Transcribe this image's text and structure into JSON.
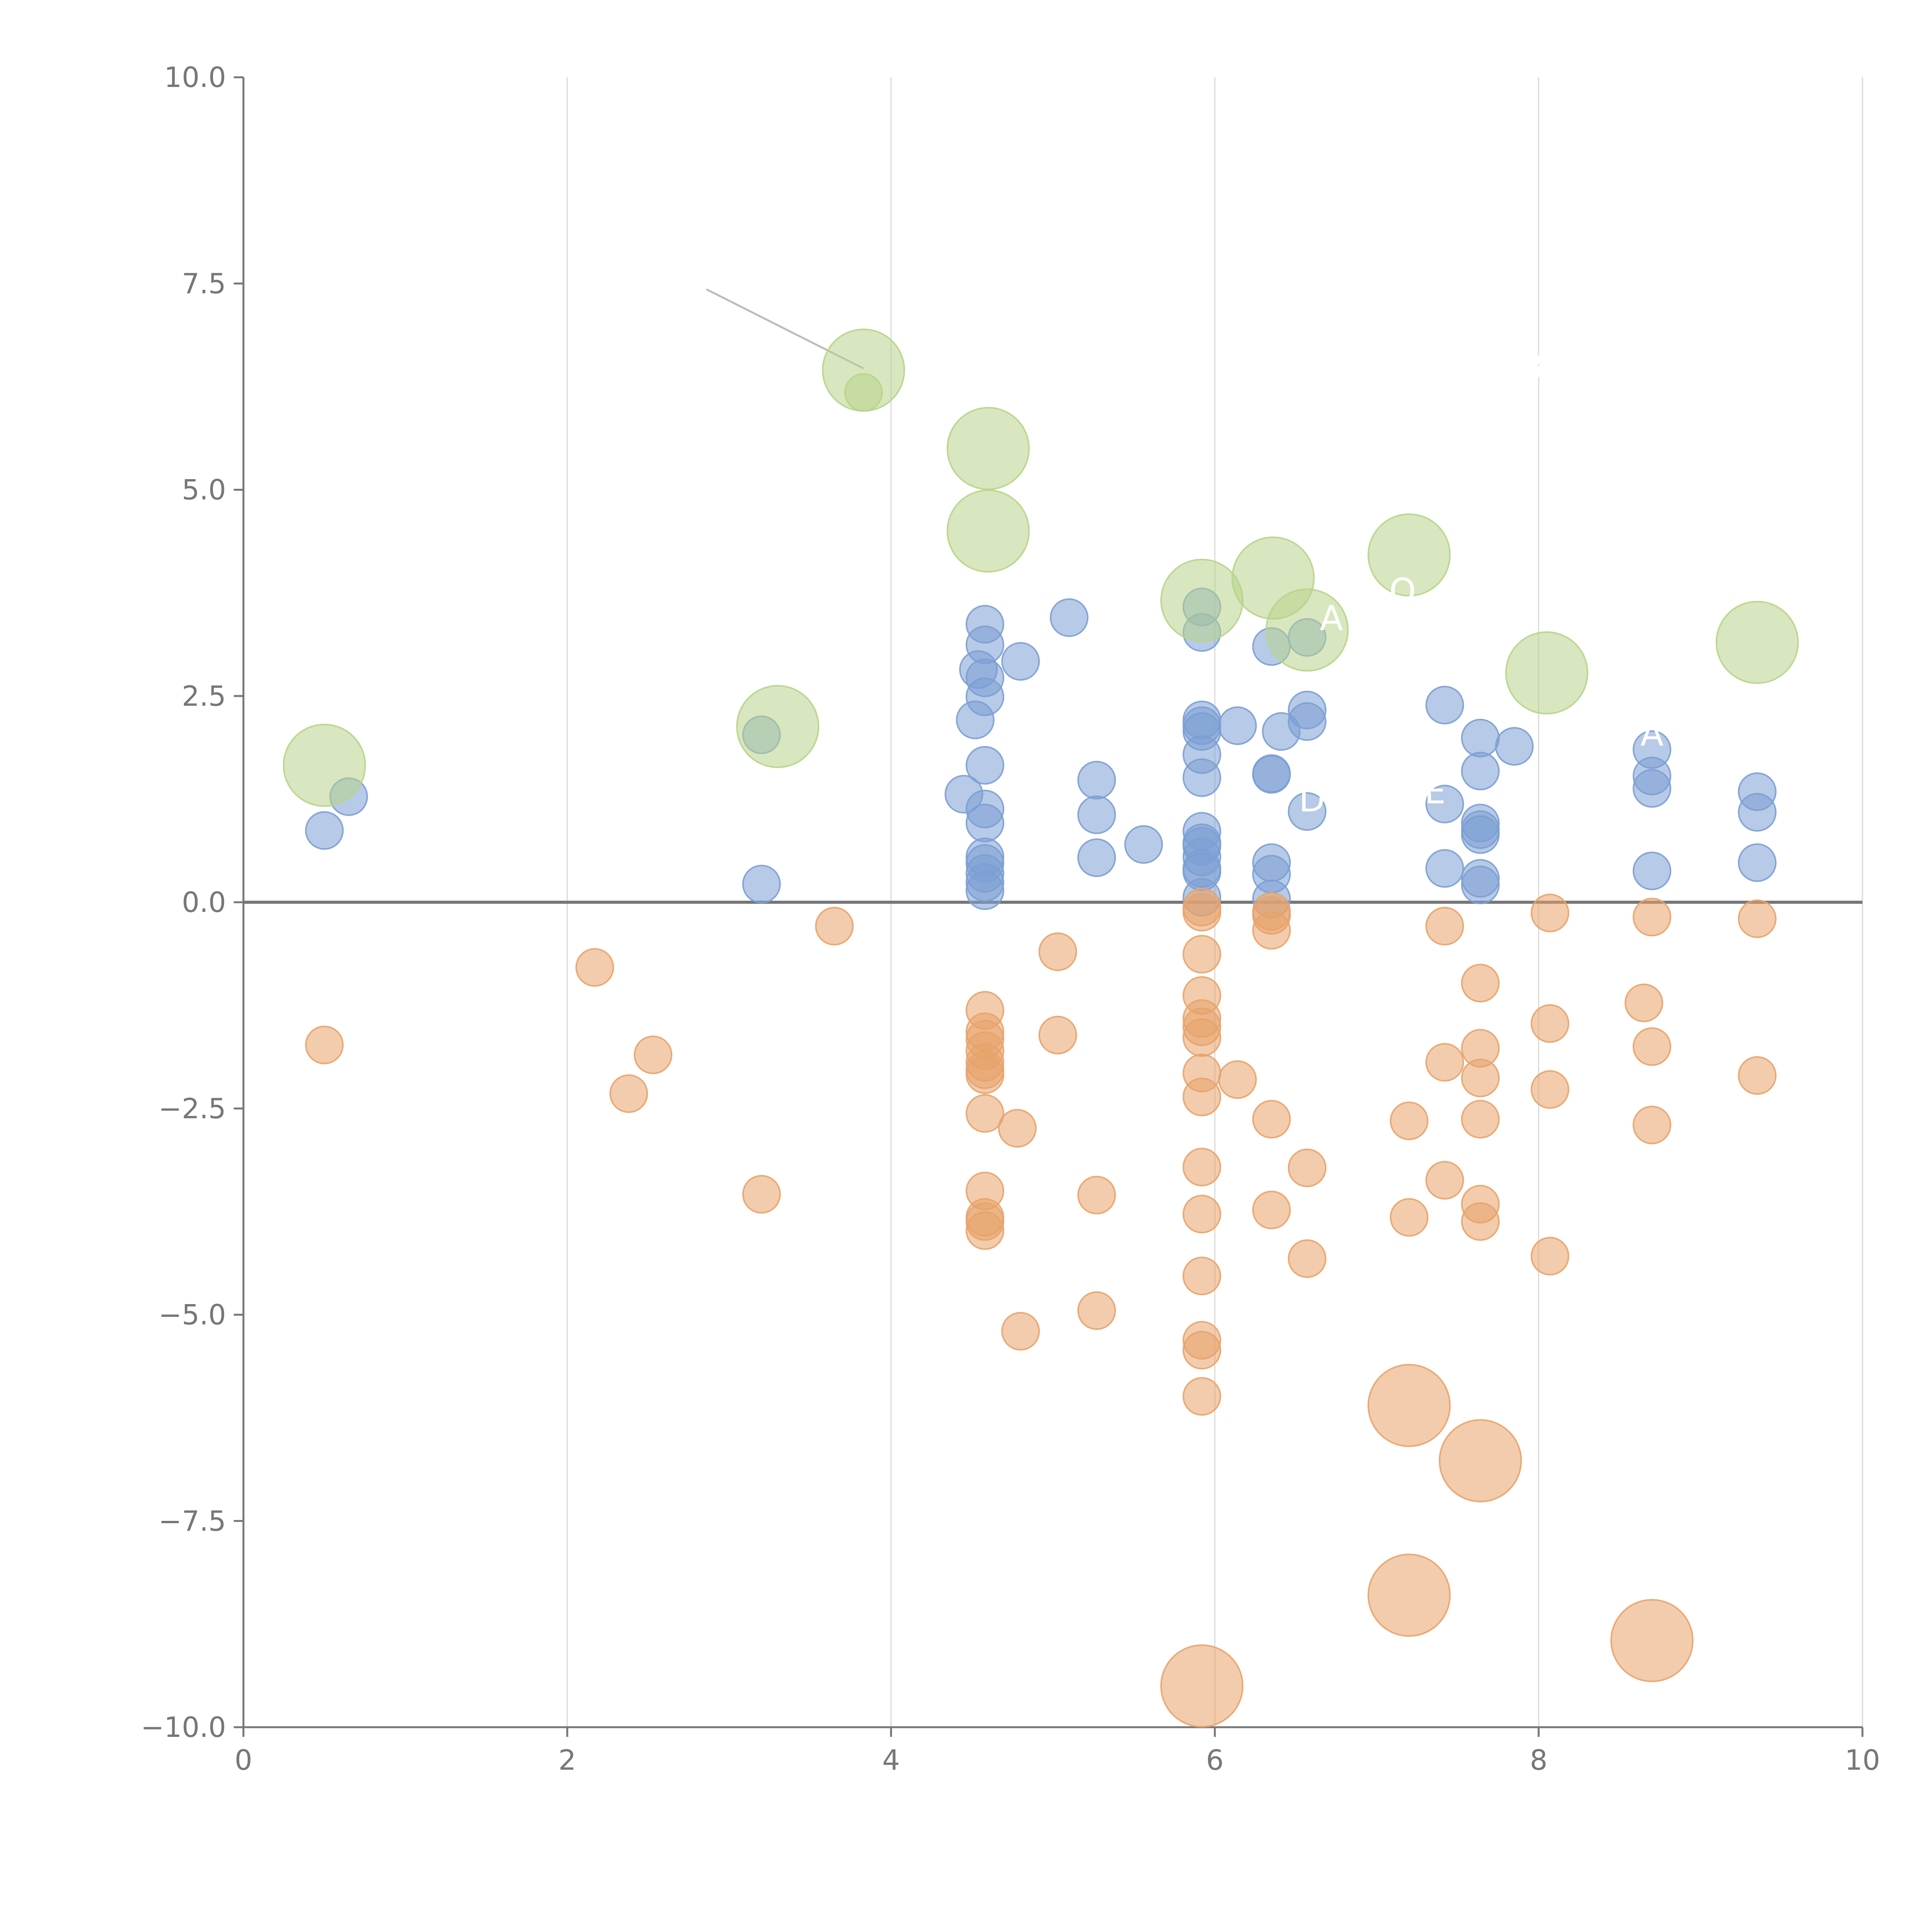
{
  "chart_data": {
    "type": "scatter",
    "title": "",
    "xlabel": "",
    "ylabel": "",
    "xlim": [
      0,
      10
    ],
    "ylim": [
      -10,
      10
    ],
    "x_ticks": [
      0,
      2,
      4,
      6,
      8,
      10
    ],
    "x_tick_labels": [
      "0",
      "2",
      "4",
      "6",
      "8",
      "10"
    ],
    "y_ticks": [
      -10,
      -7.5,
      -5,
      -2.5,
      0,
      2.5,
      5,
      7.5,
      10
    ],
    "y_tick_labels": [
      "−10.0",
      "−7.5",
      "−5.0",
      "−2.5",
      "0.0",
      "2.5",
      "5.0",
      "7.5",
      "10.0"
    ],
    "grid": "vertical-only",
    "legend": "none",
    "colors": {
      "positive": "#7b9fd4",
      "negative": "#e8a36a",
      "highlight": "#b8d48a",
      "axis": "#777777",
      "grid": "#d9d9d9",
      "zero_line": "#777777"
    },
    "size_scale": {
      "small": 1,
      "large": 2.2
    },
    "series": [
      {
        "name": "positive",
        "color": "#7b9fd4",
        "points": [
          {
            "x": 0.5,
            "y": 0.87,
            "size": 1
          },
          {
            "x": 0.65,
            "y": 1.28,
            "size": 1
          },
          {
            "x": 3.2,
            "y": 2.03,
            "size": 1
          },
          {
            "x": 3.2,
            "y": 0.22,
            "size": 1
          },
          {
            "x": 4.45,
            "y": 1.31,
            "size": 1
          },
          {
            "x": 4.52,
            "y": 2.21,
            "size": 1
          },
          {
            "x": 4.54,
            "y": 2.82,
            "size": 1
          },
          {
            "x": 4.58,
            "y": 3.37,
            "size": 1
          },
          {
            "x": 4.58,
            "y": 3.12,
            "size": 1
          },
          {
            "x": 4.58,
            "y": 2.72,
            "size": 1
          },
          {
            "x": 4.58,
            "y": 2.49,
            "size": 1
          },
          {
            "x": 4.58,
            "y": 1.66,
            "size": 1
          },
          {
            "x": 4.58,
            "y": 1.13,
            "size": 1
          },
          {
            "x": 4.58,
            "y": 0.96,
            "size": 1
          },
          {
            "x": 4.58,
            "y": 0.55,
            "size": 1
          },
          {
            "x": 4.58,
            "y": 0.47,
            "size": 1
          },
          {
            "x": 4.58,
            "y": 0.35,
            "size": 1
          },
          {
            "x": 4.58,
            "y": 0.24,
            "size": 1
          },
          {
            "x": 4.58,
            "y": 0.14,
            "size": 1
          },
          {
            "x": 4.8,
            "y": 2.92,
            "size": 1
          },
          {
            "x": 5.1,
            "y": 3.45,
            "size": 1
          },
          {
            "x": 5.27,
            "y": 1.48,
            "size": 1
          },
          {
            "x": 5.27,
            "y": 1.06,
            "size": 1
          },
          {
            "x": 5.27,
            "y": 0.54,
            "size": 1
          },
          {
            "x": 5.56,
            "y": 0.7,
            "size": 1
          },
          {
            "x": 5.92,
            "y": 3.58,
            "size": 1
          },
          {
            "x": 5.92,
            "y": 3.27,
            "size": 1
          },
          {
            "x": 5.92,
            "y": 2.21,
            "size": 1
          },
          {
            "x": 5.92,
            "y": 2.14,
            "size": 1
          },
          {
            "x": 5.92,
            "y": 2.07,
            "size": 1
          },
          {
            "x": 5.92,
            "y": 1.79,
            "size": 1
          },
          {
            "x": 5.92,
            "y": 1.51,
            "size": 1
          },
          {
            "x": 5.92,
            "y": 0.86,
            "size": 1
          },
          {
            "x": 5.92,
            "y": 0.72,
            "size": 1
          },
          {
            "x": 5.92,
            "y": 0.68,
            "size": 1
          },
          {
            "x": 5.92,
            "y": 0.55,
            "size": 1
          },
          {
            "x": 5.92,
            "y": 0.41,
            "size": 1
          },
          {
            "x": 5.92,
            "y": 0.37,
            "size": 1
          },
          {
            "x": 5.92,
            "y": 0.06,
            "size": 1
          },
          {
            "x": 6.14,
            "y": 2.14,
            "size": 1
          },
          {
            "x": 6.35,
            "y": 3.1,
            "size": 1
          },
          {
            "x": 6.35,
            "y": 1.56,
            "size": 1
          },
          {
            "x": 6.35,
            "y": 1.55,
            "size": 1
          },
          {
            "x": 6.35,
            "y": 0.48,
            "size": 1
          },
          {
            "x": 6.35,
            "y": 0.34,
            "size": 1
          },
          {
            "x": 6.35,
            "y": 0.04,
            "size": 1
          },
          {
            "x": 6.41,
            "y": 2.07,
            "size": 1
          },
          {
            "x": 6.57,
            "y": 3.21,
            "size": 1
          },
          {
            "x": 6.57,
            "y": 2.33,
            "size": 1
          },
          {
            "x": 6.57,
            "y": 2.19,
            "size": 1
          },
          {
            "x": 6.57,
            "y": 1.1,
            "size": 1
          },
          {
            "x": 7.42,
            "y": 2.39,
            "size": 1
          },
          {
            "x": 7.42,
            "y": 1.19,
            "size": 1
          },
          {
            "x": 7.42,
            "y": 0.41,
            "size": 1
          },
          {
            "x": 7.64,
            "y": 1.99,
            "size": 1
          },
          {
            "x": 7.64,
            "y": 1.59,
            "size": 1
          },
          {
            "x": 7.64,
            "y": 0.96,
            "size": 1
          },
          {
            "x": 7.64,
            "y": 0.88,
            "size": 1
          },
          {
            "x": 7.64,
            "y": 0.82,
            "size": 1
          },
          {
            "x": 7.64,
            "y": 0.29,
            "size": 1
          },
          {
            "x": 7.64,
            "y": 0.21,
            "size": 1
          },
          {
            "x": 7.85,
            "y": 1.89,
            "size": 1
          },
          {
            "x": 8.7,
            "y": 1.85,
            "size": 1
          },
          {
            "x": 8.7,
            "y": 1.53,
            "size": 1
          },
          {
            "x": 8.7,
            "y": 1.38,
            "size": 1
          },
          {
            "x": 8.7,
            "y": 0.38,
            "size": 1
          },
          {
            "x": 9.35,
            "y": 1.34,
            "size": 1
          },
          {
            "x": 9.35,
            "y": 1.09,
            "size": 1
          },
          {
            "x": 9.35,
            "y": 0.48,
            "size": 1
          }
        ]
      },
      {
        "name": "negative",
        "color": "#e8a36a",
        "points": [
          {
            "x": 0.5,
            "y": -1.73,
            "size": 1
          },
          {
            "x": 2.17,
            "y": -0.79,
            "size": 1
          },
          {
            "x": 2.38,
            "y": -2.32,
            "size": 1
          },
          {
            "x": 2.53,
            "y": -1.85,
            "size": 1
          },
          {
            "x": 3.2,
            "y": -3.54,
            "size": 1
          },
          {
            "x": 3.65,
            "y": -0.29,
            "size": 1
          },
          {
            "x": 4.58,
            "y": -1.31,
            "size": 1
          },
          {
            "x": 4.58,
            "y": -1.57,
            "size": 1
          },
          {
            "x": 4.58,
            "y": -1.66,
            "size": 1
          },
          {
            "x": 4.58,
            "y": -1.8,
            "size": 1
          },
          {
            "x": 4.58,
            "y": -1.94,
            "size": 1
          },
          {
            "x": 4.58,
            "y": -2.03,
            "size": 1
          },
          {
            "x": 4.58,
            "y": -2.09,
            "size": 1
          },
          {
            "x": 4.58,
            "y": -2.56,
            "size": 1
          },
          {
            "x": 4.58,
            "y": -3.5,
            "size": 1
          },
          {
            "x": 4.58,
            "y": -3.82,
            "size": 1
          },
          {
            "x": 4.58,
            "y": -3.87,
            "size": 1
          },
          {
            "x": 4.58,
            "y": -3.98,
            "size": 1
          },
          {
            "x": 4.78,
            "y": -2.74,
            "size": 1
          },
          {
            "x": 4.8,
            "y": -5.2,
            "size": 1
          },
          {
            "x": 5.03,
            "y": -0.6,
            "size": 1
          },
          {
            "x": 5.03,
            "y": -1.61,
            "size": 1
          },
          {
            "x": 5.27,
            "y": -3.55,
            "size": 1
          },
          {
            "x": 5.27,
            "y": -4.95,
            "size": 1
          },
          {
            "x": 5.92,
            "y": -0.06,
            "size": 1
          },
          {
            "x": 5.92,
            "y": -0.12,
            "size": 1
          },
          {
            "x": 5.92,
            "y": -0.63,
            "size": 1
          },
          {
            "x": 5.92,
            "y": -1.13,
            "size": 1
          },
          {
            "x": 5.92,
            "y": -1.41,
            "size": 1
          },
          {
            "x": 5.92,
            "y": -1.51,
            "size": 1
          },
          {
            "x": 5.92,
            "y": -1.64,
            "size": 1
          },
          {
            "x": 5.92,
            "y": -2.07,
            "size": 1
          },
          {
            "x": 5.92,
            "y": -2.36,
            "size": 1
          },
          {
            "x": 5.92,
            "y": -3.21,
            "size": 1
          },
          {
            "x": 5.92,
            "y": -3.78,
            "size": 1
          },
          {
            "x": 5.92,
            "y": -4.53,
            "size": 1
          },
          {
            "x": 5.92,
            "y": -5.31,
            "size": 1
          },
          {
            "x": 5.92,
            "y": -5.43,
            "size": 1
          },
          {
            "x": 5.92,
            "y": -5.99,
            "size": 1
          },
          {
            "x": 6.14,
            "y": -2.15,
            "size": 1
          },
          {
            "x": 6.35,
            "y": -0.11,
            "size": 1
          },
          {
            "x": 6.35,
            "y": -0.16,
            "size": 1
          },
          {
            "x": 6.35,
            "y": -0.34,
            "size": 1
          },
          {
            "x": 6.35,
            "y": -2.63,
            "size": 1
          },
          {
            "x": 6.35,
            "y": -3.73,
            "size": 1
          },
          {
            "x": 6.57,
            "y": -3.22,
            "size": 1
          },
          {
            "x": 6.57,
            "y": -4.32,
            "size": 1
          },
          {
            "x": 7.2,
            "y": -2.65,
            "size": 1
          },
          {
            "x": 7.2,
            "y": -3.82,
            "size": 1
          },
          {
            "x": 7.42,
            "y": -0.29,
            "size": 1
          },
          {
            "x": 7.42,
            "y": -1.94,
            "size": 1
          },
          {
            "x": 7.42,
            "y": -3.37,
            "size": 1
          },
          {
            "x": 7.64,
            "y": -0.98,
            "size": 1
          },
          {
            "x": 7.64,
            "y": -1.77,
            "size": 1
          },
          {
            "x": 7.64,
            "y": -2.13,
            "size": 1
          },
          {
            "x": 7.64,
            "y": -2.63,
            "size": 1
          },
          {
            "x": 7.64,
            "y": -3.66,
            "size": 1
          },
          {
            "x": 7.64,
            "y": -3.87,
            "size": 1
          },
          {
            "x": 8.07,
            "y": -0.13,
            "size": 1
          },
          {
            "x": 8.07,
            "y": -1.47,
            "size": 1
          },
          {
            "x": 8.07,
            "y": -2.27,
            "size": 1
          },
          {
            "x": 8.07,
            "y": -4.29,
            "size": 1
          },
          {
            "x": 8.65,
            "y": -1.22,
            "size": 1
          },
          {
            "x": 8.7,
            "y": -0.18,
            "size": 1
          },
          {
            "x": 8.7,
            "y": -1.75,
            "size": 1
          },
          {
            "x": 8.7,
            "y": -2.7,
            "size": 1
          },
          {
            "x": 9.35,
            "y": -0.2,
            "size": 1
          },
          {
            "x": 9.35,
            "y": -2.1,
            "size": 1
          },
          {
            "x": 7.2,
            "y": -6.1,
            "size": 2.2
          },
          {
            "x": 7.64,
            "y": -6.77,
            "size": 2.2
          },
          {
            "x": 7.2,
            "y": -8.4,
            "size": 2.2
          },
          {
            "x": 8.7,
            "y": -8.95,
            "size": 2.2
          },
          {
            "x": 5.92,
            "y": -9.5,
            "size": 2.2
          }
        ]
      },
      {
        "name": "highlight",
        "color": "#b8d48a",
        "points": [
          {
            "x": 0.5,
            "y": 1.66,
            "size": 2.2
          },
          {
            "x": 3.3,
            "y": 2.13,
            "size": 2.2
          },
          {
            "x": 3.83,
            "y": 6.45,
            "size": 2.2
          },
          {
            "x": 3.83,
            "y": 6.18,
            "size": 1
          },
          {
            "x": 4.6,
            "y": 5.5,
            "size": 2.2
          },
          {
            "x": 4.6,
            "y": 4.5,
            "size": 2.2
          },
          {
            "x": 5.92,
            "y": 3.66,
            "size": 2.2
          },
          {
            "x": 6.36,
            "y": 3.93,
            "size": 2.2
          },
          {
            "x": 6.57,
            "y": 3.3,
            "size": 2.2
          },
          {
            "x": 7.2,
            "y": 4.21,
            "size": 2.2
          },
          {
            "x": 8.05,
            "y": 2.78,
            "size": 2.2
          },
          {
            "x": 9.35,
            "y": 3.15,
            "size": 2.2
          }
        ]
      }
    ],
    "leader_lines": [
      {
        "from": [
          2.86,
          7.43
        ],
        "to": [
          3.83,
          6.47
        ],
        "color": "#bbbbbb"
      },
      {
        "from": [
          4.62,
          5.55
        ],
        "to": [
          4.76,
          5.75
        ],
        "color": "#ffffff"
      },
      {
        "from": [
          4.62,
          4.47
        ],
        "to": [
          4.82,
          4.43
        ],
        "color": "#ffffff"
      },
      {
        "from": [
          5.98,
          3.66
        ],
        "to": [
          6.5,
          3.63
        ],
        "color": "#ffffff"
      },
      {
        "from": [
          6.36,
          4.0
        ],
        "to": [
          6.4,
          4.3
        ],
        "color": "#ffffff"
      },
      {
        "from": [
          6.59,
          3.33
        ],
        "to": [
          6.66,
          3.05
        ],
        "color": "#ffffff"
      },
      {
        "from": [
          7.2,
          4.25
        ],
        "to": [
          7.4,
          4.55
        ],
        "color": "#ffffff"
      },
      {
        "from": [
          9.35,
          3.2
        ],
        "to": [
          9.28,
          3.55
        ],
        "color": "#ffffff"
      },
      {
        "from": [
          3.3,
          2.2
        ],
        "to": [
          3.18,
          2.45
        ],
        "color": "#ffffff"
      },
      {
        "from": [
          7.2,
          -6.05
        ],
        "to": [
          7.24,
          -5.7
        ],
        "color": "#ffffff"
      },
      {
        "from": [
          7.64,
          -6.72
        ],
        "to": [
          7.86,
          -6.55
        ],
        "color": "#ffffff"
      },
      {
        "from": [
          7.2,
          -8.45
        ],
        "to": [
          7.3,
          -8.75
        ],
        "color": "#ffffff"
      },
      {
        "from": [
          8.7,
          -8.9
        ],
        "to": [
          8.86,
          -8.65
        ],
        "color": "#ffffff"
      },
      {
        "from": [
          5.92,
          -9.5
        ],
        "to": [
          5.7,
          -9.54
        ],
        "color": "#ffffff"
      }
    ],
    "annotations": [
      {
        "text": "A",
        "x": 6.72,
        "y": 3.3
      },
      {
        "text": "O",
        "x": 7.16,
        "y": 3.63
      },
      {
        "text": "B",
        "x": 7.96,
        "y": 6.35
      },
      {
        "text": "A",
        "x": 8.7,
        "y": 1.9
      },
      {
        "text": "D",
        "x": 6.6,
        "y": 1.1
      },
      {
        "text": "E",
        "x": 7.36,
        "y": 1.2
      }
    ]
  }
}
